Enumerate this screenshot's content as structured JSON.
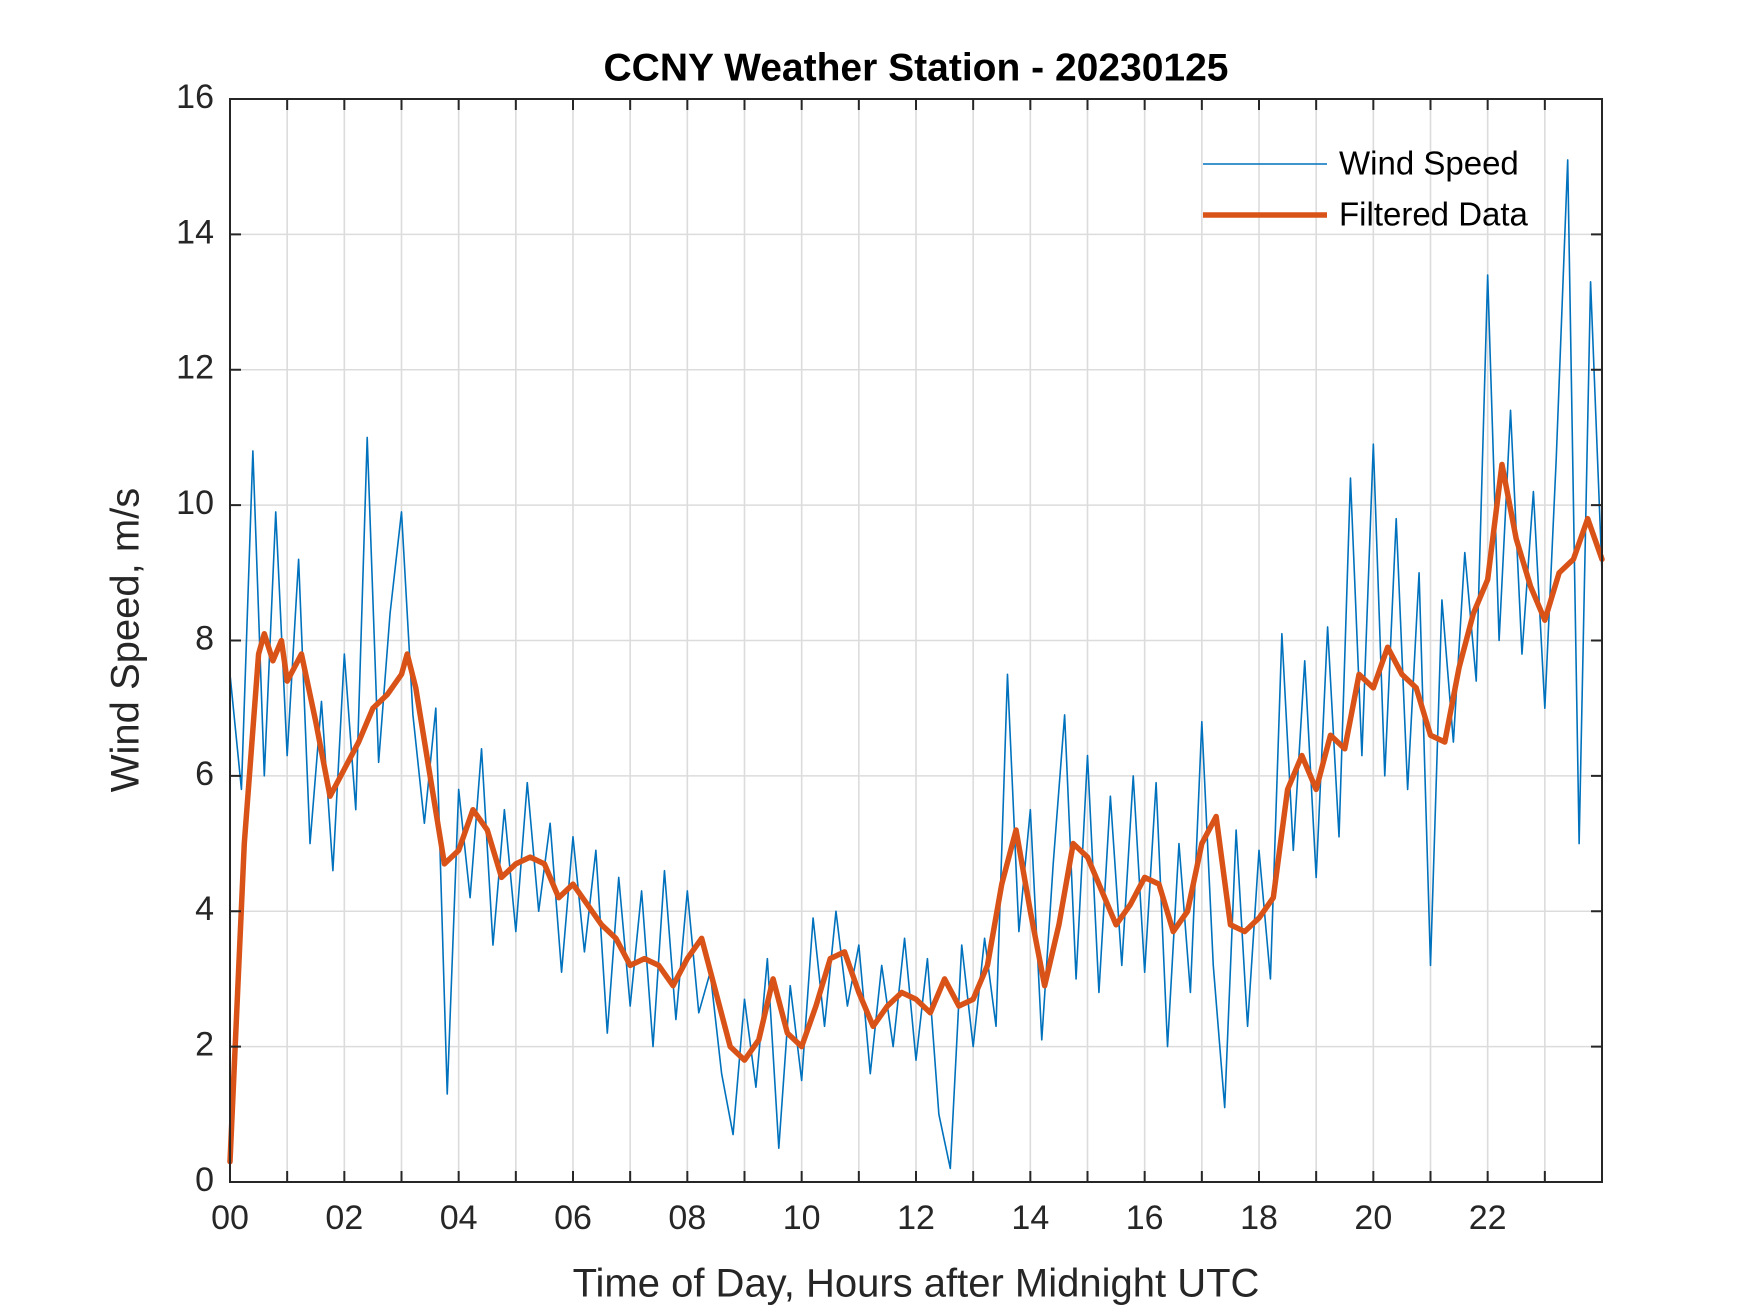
{
  "chart_data": {
    "type": "line",
    "title": "CCNY Weather Station - 20230125",
    "xlabel": "Time of Day, Hours after Midnight UTC",
    "ylabel": "Wind Speed, m/s",
    "xlim": [
      0,
      24
    ],
    "ylim": [
      0,
      16
    ],
    "xticks": [
      {
        "value": 0,
        "label": "00"
      },
      {
        "value": 2,
        "label": "02"
      },
      {
        "value": 4,
        "label": "04"
      },
      {
        "value": 6,
        "label": "06"
      },
      {
        "value": 8,
        "label": "08"
      },
      10,
      12,
      14,
      16,
      18,
      20,
      22
    ],
    "xminorticks": [
      1,
      3,
      5,
      7,
      9,
      11,
      13,
      15,
      17,
      19,
      21,
      23
    ],
    "yticks": [
      0,
      2,
      4,
      6,
      8,
      10,
      12,
      14,
      16
    ],
    "grid": true,
    "legend": "upper right",
    "series": [
      {
        "name": "Wind Speed",
        "color": "#0072BD",
        "x": [
          0,
          0.2,
          0.4,
          0.6,
          0.8,
          1,
          1.2,
          1.4,
          1.6,
          1.8,
          2,
          2.2,
          2.4,
          2.6,
          2.8,
          3,
          3.2,
          3.4,
          3.6,
          3.8,
          4,
          4.2,
          4.4,
          4.6,
          4.8,
          5,
          5.2,
          5.4,
          5.6,
          5.8,
          6,
          6.2,
          6.4,
          6.6,
          6.8,
          7,
          7.2,
          7.4,
          7.6,
          7.8,
          8,
          8.2,
          8.4,
          8.6,
          8.8,
          9,
          9.2,
          9.4,
          9.6,
          9.8,
          10,
          10.2,
          10.4,
          10.6,
          10.8,
          11,
          11.2,
          11.4,
          11.6,
          11.8,
          12,
          12.2,
          12.4,
          12.6,
          12.8,
          13,
          13.2,
          13.4,
          13.6,
          13.8,
          14,
          14.2,
          14.4,
          14.6,
          14.8,
          15,
          15.2,
          15.4,
          15.6,
          15.8,
          16,
          16.2,
          16.4,
          16.6,
          16.8,
          17,
          17.2,
          17.4,
          17.6,
          17.8,
          18,
          18.2,
          18.4,
          18.6,
          18.8,
          19,
          19.2,
          19.4,
          19.6,
          19.8,
          20,
          20.2,
          20.4,
          20.6,
          20.8,
          21,
          21.2,
          21.4,
          21.6,
          21.8,
          22,
          22.2,
          22.4,
          22.6,
          22.8,
          23,
          23.2,
          23.4,
          23.6,
          23.8,
          24
        ],
        "values": [
          7.5,
          5.8,
          10.8,
          6.0,
          9.9,
          6.3,
          9.2,
          5.0,
          7.1,
          4.6,
          7.8,
          5.5,
          11.0,
          6.2,
          8.4,
          9.9,
          6.9,
          5.3,
          7.0,
          1.3,
          5.8,
          4.2,
          6.4,
          3.5,
          5.5,
          3.7,
          5.9,
          4.0,
          5.3,
          3.1,
          5.1,
          3.4,
          4.9,
          2.2,
          4.5,
          2.6,
          4.3,
          2.0,
          4.6,
          2.4,
          4.3,
          2.5,
          3.1,
          1.6,
          0.7,
          2.7,
          1.4,
          3.3,
          0.5,
          2.9,
          1.5,
          3.9,
          2.3,
          4.0,
          2.6,
          3.5,
          1.6,
          3.2,
          2.0,
          3.6,
          1.8,
          3.3,
          1.0,
          0.2,
          3.5,
          2.0,
          3.6,
          2.3,
          7.5,
          3.7,
          5.5,
          2.1,
          4.7,
          6.9,
          3.0,
          6.3,
          2.8,
          5.7,
          3.2,
          6.0,
          3.1,
          5.9,
          2.0,
          5.0,
          2.8,
          6.8,
          3.2,
          1.1,
          5.2,
          2.3,
          4.9,
          3.0,
          8.1,
          4.9,
          7.7,
          4.5,
          8.2,
          5.1,
          10.4,
          6.3,
          10.9,
          6.0,
          9.8,
          5.8,
          9.0,
          3.2,
          8.6,
          6.5,
          9.3,
          7.4,
          13.4,
          8.0,
          11.4,
          7.8,
          10.2,
          7.0,
          10.7,
          15.1,
          5.0,
          13.3,
          9.0
        ]
      },
      {
        "name": "Filtered Data",
        "color": "#D95319",
        "x": [
          0,
          0.25,
          0.5,
          0.6,
          0.75,
          0.9,
          1,
          1.25,
          1.5,
          1.75,
          2,
          2.25,
          2.5,
          2.75,
          3,
          3.1,
          3.25,
          3.5,
          3.75,
          4,
          4.25,
          4.5,
          4.75,
          5,
          5.25,
          5.5,
          5.75,
          6,
          6.25,
          6.5,
          6.75,
          7,
          7.25,
          7.5,
          7.75,
          8,
          8.25,
          8.5,
          8.75,
          9,
          9.25,
          9.5,
          9.75,
          10,
          10.25,
          10.5,
          10.75,
          11,
          11.25,
          11.5,
          11.75,
          12,
          12.25,
          12.5,
          12.75,
          13,
          13.25,
          13.5,
          13.75,
          14,
          14.25,
          14.5,
          14.75,
          15,
          15.25,
          15.5,
          15.75,
          16,
          16.25,
          16.5,
          16.75,
          17,
          17.25,
          17.5,
          17.75,
          18,
          18.25,
          18.5,
          18.75,
          19,
          19.25,
          19.5,
          19.75,
          20,
          20.25,
          20.5,
          20.75,
          21,
          21.25,
          21.5,
          21.75,
          22,
          22.25,
          22.5,
          22.75,
          23,
          23.25,
          23.5,
          23.75,
          24
        ],
        "values": [
          0.3,
          5.0,
          7.8,
          8.1,
          7.7,
          8.0,
          7.4,
          7.8,
          6.8,
          5.7,
          6.1,
          6.5,
          7.0,
          7.2,
          7.5,
          7.8,
          7.3,
          6.0,
          4.7,
          4.9,
          5.5,
          5.2,
          4.5,
          4.7,
          4.8,
          4.7,
          4.2,
          4.4,
          4.1,
          3.8,
          3.6,
          3.2,
          3.3,
          3.2,
          2.9,
          3.3,
          3.6,
          2.8,
          2.0,
          1.8,
          2.1,
          3.0,
          2.2,
          2.0,
          2.6,
          3.3,
          3.4,
          2.8,
          2.3,
          2.6,
          2.8,
          2.7,
          2.5,
          3.0,
          2.6,
          2.7,
          3.2,
          4.4,
          5.2,
          4.0,
          2.9,
          3.8,
          5.0,
          4.8,
          4.3,
          3.8,
          4.1,
          4.5,
          4.4,
          3.7,
          4.0,
          5.0,
          5.4,
          3.8,
          3.7,
          3.9,
          4.2,
          5.8,
          6.3,
          5.8,
          6.6,
          6.4,
          7.5,
          7.3,
          7.9,
          7.5,
          7.3,
          6.6,
          6.5,
          7.6,
          8.4,
          8.9,
          10.6,
          9.5,
          8.8,
          8.3,
          9.0,
          9.2,
          9.8,
          9.2
        ]
      }
    ]
  }
}
